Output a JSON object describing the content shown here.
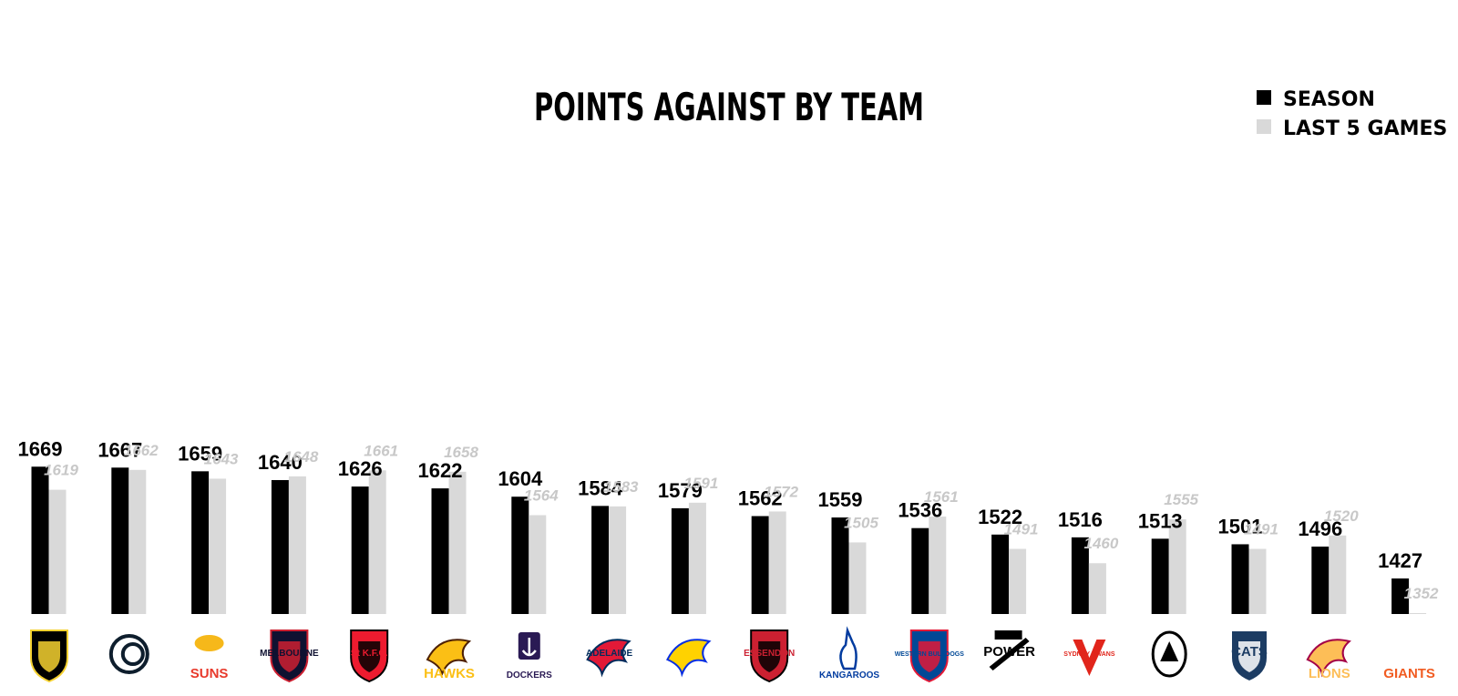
{
  "chart_data": {
    "type": "bar",
    "title": "POINTS AGAINST BY TEAM",
    "categories": [
      "Richmond",
      "Carlton",
      "Suns",
      "Melbourne",
      "St K.F.C.",
      "Hawks",
      "Dockers",
      "Adelaide Crows",
      "West Coast Eagles",
      "Essendon",
      "Kangaroos",
      "Western Bulldogs",
      "Power",
      "Sydney Swans",
      "Collingwood",
      "Cats",
      "Lions",
      "Giants"
    ],
    "series": [
      {
        "name": "SEASON",
        "color": "#000000",
        "values": [
          1669,
          1667,
          1659,
          1640,
          1626,
          1622,
          1604,
          1584,
          1579,
          1562,
          1559,
          1536,
          1522,
          1516,
          1513,
          1501,
          1496,
          1427
        ]
      },
      {
        "name": "LAST 5 GAMES",
        "color": "#d9d9d9",
        "values": [
          1619,
          1662,
          1643,
          1648,
          1661,
          1658,
          1564,
          1583,
          1591,
          1572,
          1505,
          1561,
          1491,
          1460,
          1555,
          1491,
          1520,
          1352
        ]
      }
    ],
    "ylim": [
      1350,
      1700
    ],
    "grid": false,
    "legend": "top-right",
    "xlabel": "",
    "ylabel": ""
  },
  "logos": [
    {
      "icon": "richmond-tiger-icon",
      "text": "",
      "primary": "#000000",
      "secondary": "#f5d130"
    },
    {
      "icon": "carlton-cfc-icon",
      "text": "",
      "primary": "#0e1e2d",
      "secondary": "#ffffff"
    },
    {
      "icon": "suns-logo-icon",
      "text": "SUNS",
      "primary": "#e8392b",
      "secondary": "#f6b81a"
    },
    {
      "icon": "melbourne-shield-icon",
      "text": "MELBOURNE",
      "primary": "#0f1131",
      "secondary": "#cc2031"
    },
    {
      "icon": "stkilda-shield-icon",
      "text": "St K.F.C.",
      "primary": "#ed1b2f",
      "secondary": "#000000"
    },
    {
      "icon": "hawks-hawk-icon",
      "text": "HAWKS",
      "primary": "#4d2004",
      "secondary": "#fbbf15"
    },
    {
      "icon": "dockers-anchor-icon",
      "text": "DOCKERS",
      "primary": "#2a1a54",
      "secondary": "#ffffff"
    },
    {
      "icon": "crows-crow-icon",
      "text": "ADELAIDE",
      "primary": "#002b5c",
      "secondary": "#e21937"
    },
    {
      "icon": "eagles-eagle-icon",
      "text": "",
      "primary": "#062ee2",
      "secondary": "#ffd200"
    },
    {
      "icon": "essendon-shield-icon",
      "text": "ESSENDON",
      "primary": "#cc2031",
      "secondary": "#000000"
    },
    {
      "icon": "kangaroos-roo-icon",
      "text": "KANGAROOS",
      "primary": "#013b9f",
      "secondary": "#ffffff"
    },
    {
      "icon": "bulldogs-shield-icon",
      "text": "WESTERN BULLDOGS",
      "primary": "#014896",
      "secondary": "#e21937"
    },
    {
      "icon": "power-logo-icon",
      "text": "POWER",
      "primary": "#000000",
      "secondary": "#008aab"
    },
    {
      "icon": "swans-swan-icon",
      "text": "SYDNEY SWANS",
      "primary": "#e1251b",
      "secondary": "#ffffff"
    },
    {
      "icon": "collingwood-magpie-icon",
      "text": "",
      "primary": "#000000",
      "secondary": "#ffffff"
    },
    {
      "icon": "cats-shield-icon",
      "text": "CATS",
      "primary": "#1c3c63",
      "secondary": "#ffffff"
    },
    {
      "icon": "lions-lion-icon",
      "text": "LIONS",
      "primary": "#a30046",
      "secondary": "#fdbe57"
    },
    {
      "icon": "giants-logo-icon",
      "text": "GIANTS",
      "primary": "#f15c22",
      "secondary": "#ffffff"
    }
  ]
}
